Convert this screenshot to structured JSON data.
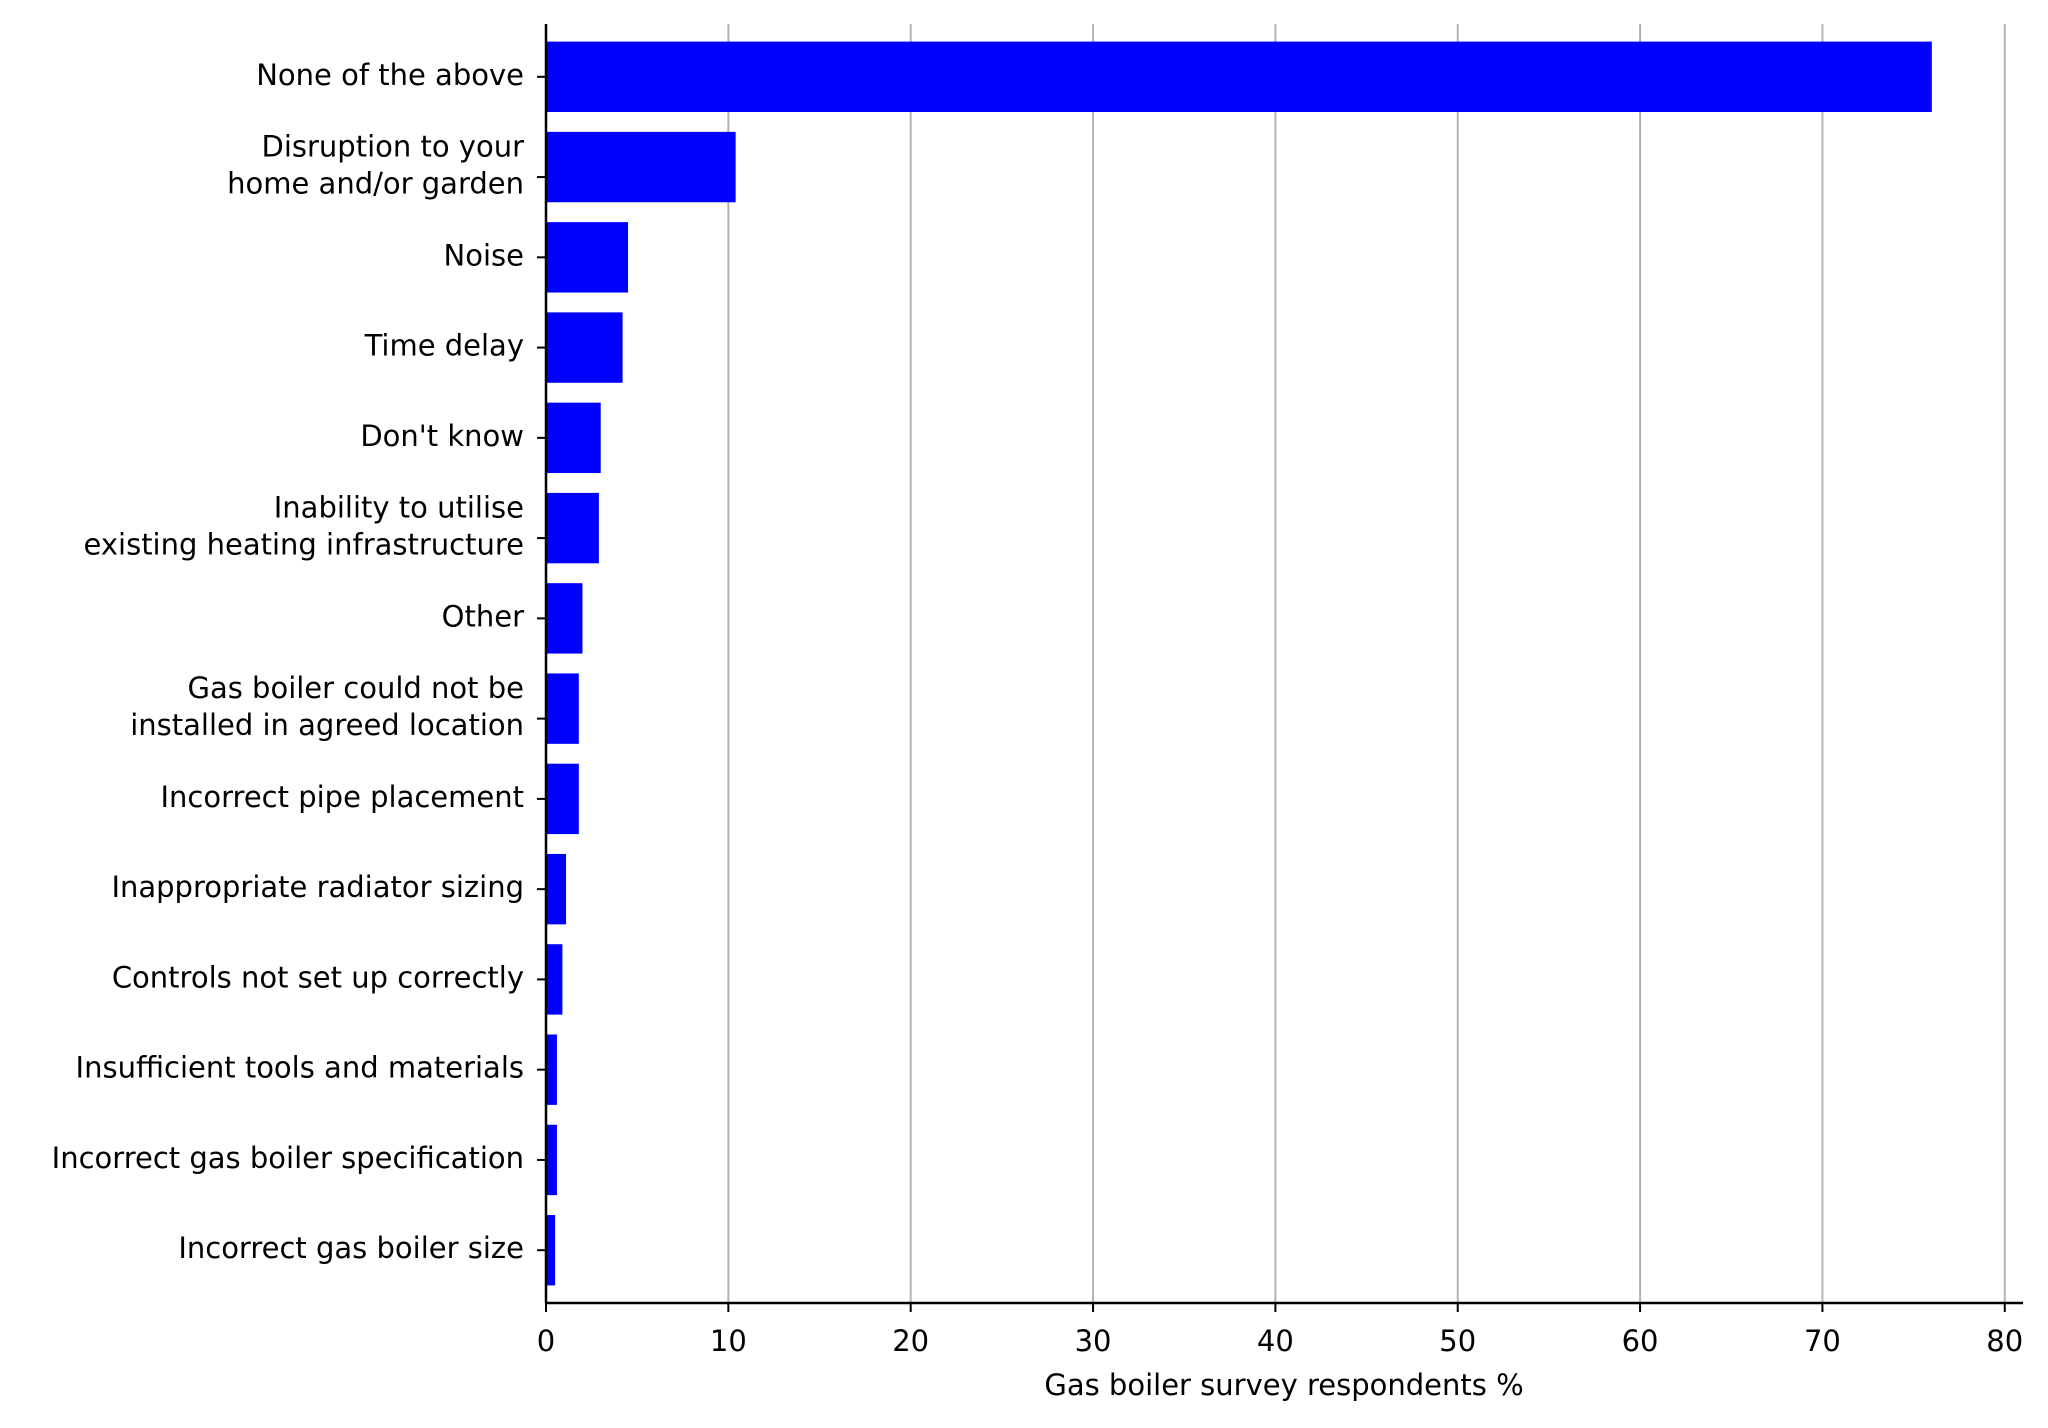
{
  "chart_data": {
    "type": "barh",
    "xlabel": "Gas boiler survey respondents %",
    "categories": [
      "None of the above",
      "Disruption to your\nhome and/or garden",
      "Noise",
      "Time delay",
      "Don't know",
      "Inability to utilise\nexisting heating infrastructure",
      "Other",
      "Gas boiler could not be\ninstalled in agreed location",
      "Incorrect pipe placement",
      "Inappropriate radiator sizing",
      "Controls not set up correctly",
      "Insufficient tools and materials",
      "Incorrect gas boiler specification",
      "Incorrect gas boiler size"
    ],
    "values": [
      76,
      10.4,
      4.5,
      4.2,
      3.0,
      2.9,
      2.0,
      1.8,
      1.8,
      1.1,
      0.9,
      0.6,
      0.6,
      0.5
    ],
    "color": "#0000ff",
    "xlim": [
      0,
      81
    ],
    "xticks": [
      0,
      10,
      20,
      30,
      40,
      50,
      60,
      70,
      80
    ],
    "grid": true
  }
}
